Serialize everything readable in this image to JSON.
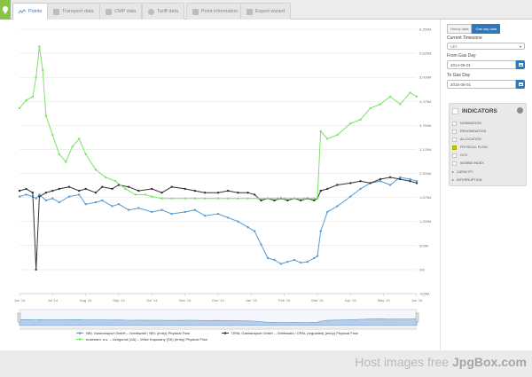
{
  "tabs": [
    {
      "label": "Points",
      "icon": "points-icon",
      "active": true
    },
    {
      "label": "Transport data",
      "icon": "table-icon",
      "active": false
    },
    {
      "label": "CMP data",
      "icon": "cmp-icon",
      "active": false
    },
    {
      "label": "Tariff data",
      "icon": "euro-icon",
      "active": false
    },
    {
      "label": "Point information",
      "icon": "info-icon",
      "active": false
    },
    {
      "label": "Export wizard",
      "icon": "download-icon",
      "active": false
    }
  ],
  "sidebar": {
    "toggle": {
      "hourly": "Hourly data",
      "gasday": "Gas day data",
      "selected": "gasday"
    },
    "timezone": {
      "label": "Current Timezone",
      "value": "CET"
    },
    "from": {
      "label": "From Gas Day",
      "value": "2014-06-01"
    },
    "to": {
      "label": "To Gas Day",
      "value": "2015-06-01"
    },
    "indicators": {
      "title": "INDICATORS",
      "items": [
        {
          "label": "NOMINATION",
          "checked": false
        },
        {
          "label": "RENOMINATION",
          "checked": false
        },
        {
          "label": "ALLOCATION",
          "checked": false
        },
        {
          "label": "PHYSICAL FLOW",
          "checked": true
        },
        {
          "label": "GCV",
          "checked": false
        },
        {
          "label": "WOBBE INDEX",
          "checked": false
        }
      ],
      "groups": [
        {
          "label": "CAPACITY"
        },
        {
          "label": "INTERRUPTION"
        }
      ]
    }
  },
  "chart_data": {
    "type": "line",
    "x_labels": [
      "Jun '14",
      "Jul '14",
      "Aug '14",
      "Sep '14",
      "Oct '14",
      "Nov '14",
      "Dec '14",
      "Jan '15",
      "Feb '15",
      "Mar '15",
      "Apr '15",
      "May '15",
      "Jun '15"
    ],
    "y_labels": [
      "-625M",
      "0M",
      "625M",
      "1,250M",
      "1,875M",
      "2,500M",
      "3,125M",
      "3,750M",
      "4,375M",
      "5,000M",
      "5,625M",
      "6,250M"
    ],
    "ylim": [
      -625,
      6250
    ],
    "y_units": "M",
    "grid": true,
    "legend_position": "bottom",
    "navigator": true,
    "series": [
      {
        "name": "NEL Gastransport GmbH – Greifswald / NEL (entry) Physical Flow",
        "color": "#5b9bd5",
        "x": [
          0,
          0.2,
          0.4,
          0.5,
          0.6,
          0.8,
          1.0,
          1.2,
          1.5,
          1.8,
          2.0,
          2.3,
          2.5,
          2.8,
          3.0,
          3.3,
          3.6,
          4.0,
          4.3,
          4.6,
          5.0,
          5.3,
          5.6,
          6.0,
          6.3,
          6.6,
          6.9,
          7.1,
          7.3,
          7.5,
          7.7,
          7.9,
          8.1,
          8.3,
          8.5,
          8.7,
          8.9,
          9.0,
          9.1,
          9.3,
          9.6,
          10.0,
          10.3,
          10.6,
          10.9,
          11.2,
          11.5,
          11.8,
          12.0
        ],
        "y": [
          1900,
          1950,
          1900,
          1850,
          1950,
          1800,
          1850,
          1750,
          1900,
          1950,
          1700,
          1750,
          1800,
          1650,
          1700,
          1550,
          1600,
          1500,
          1550,
          1450,
          1500,
          1550,
          1400,
          1450,
          1350,
          1250,
          1100,
          1000,
          650,
          300,
          250,
          150,
          200,
          250,
          180,
          200,
          300,
          350,
          1000,
          1500,
          1650,
          1900,
          2100,
          2250,
          2300,
          2200,
          2400,
          2350,
          2300
        ]
      },
      {
        "name": "OPAL Gastransport GmbH – Greifswald / OPAL (regulated) (entry) Physical Flow",
        "color": "#333333",
        "x": [
          0,
          0.2,
          0.4,
          0.5,
          0.6,
          0.8,
          1.0,
          1.2,
          1.5,
          1.8,
          2.0,
          2.3,
          2.5,
          2.8,
          3.0,
          3.3,
          3.6,
          4.0,
          4.3,
          4.6,
          5.0,
          5.3,
          5.6,
          6.0,
          6.3,
          6.6,
          6.9,
          7.1,
          7.3,
          7.5,
          7.7,
          7.9,
          8.1,
          8.3,
          8.5,
          8.7,
          8.9,
          9.0,
          9.1,
          9.3,
          9.6,
          10.0,
          10.3,
          10.6,
          10.9,
          11.2,
          11.5,
          11.8,
          12.0
        ],
        "y": [
          2050,
          2100,
          2000,
          0,
          1900,
          2000,
          2050,
          2100,
          2150,
          2050,
          2100,
          2000,
          2150,
          2100,
          2200,
          2150,
          2050,
          2100,
          2000,
          2150,
          2100,
          2050,
          2000,
          2000,
          2050,
          2000,
          2000,
          1950,
          1800,
          1850,
          1800,
          1850,
          1800,
          1850,
          1800,
          1850,
          1800,
          1850,
          2050,
          2100,
          2200,
          2250,
          2300,
          2250,
          2350,
          2400,
          2350,
          2300,
          2250
        ]
      },
      {
        "name": "eustream, a.s. – Uzhgorod (UA) – Velke Kapusany (SK) (entry) Physical Flow",
        "color": "#7ee06b",
        "x": [
          0,
          0.2,
          0.4,
          0.5,
          0.6,
          0.7,
          0.8,
          1.0,
          1.2,
          1.4,
          1.6,
          1.8,
          2.0,
          2.3,
          2.6,
          2.9,
          3.2,
          3.5,
          3.8,
          4.0,
          4.3,
          4.6,
          5.0,
          5.3,
          5.6,
          6.0,
          6.3,
          6.6,
          6.9,
          7.2,
          7.5,
          7.8,
          8.0,
          8.3,
          8.6,
          8.9,
          9.0,
          9.1,
          9.3,
          9.6,
          10.0,
          10.3,
          10.6,
          10.9,
          11.2,
          11.5,
          11.8,
          12.0
        ],
        "y": [
          4200,
          4400,
          4500,
          5000,
          5800,
          5200,
          4000,
          3500,
          3000,
          2800,
          3200,
          3400,
          3000,
          2600,
          2400,
          2300,
          2100,
          1950,
          1950,
          1900,
          1850,
          1850,
          1850,
          1850,
          1850,
          1850,
          1850,
          1850,
          1850,
          1850,
          1850,
          1850,
          1850,
          1850,
          1850,
          1850,
          1850,
          3600,
          3400,
          3500,
          3800,
          3900,
          4200,
          4300,
          4500,
          4300,
          4600,
          4500
        ]
      }
    ]
  },
  "watermark": {
    "prefix": "Host images free ",
    "brand": "JpgBox.com"
  }
}
